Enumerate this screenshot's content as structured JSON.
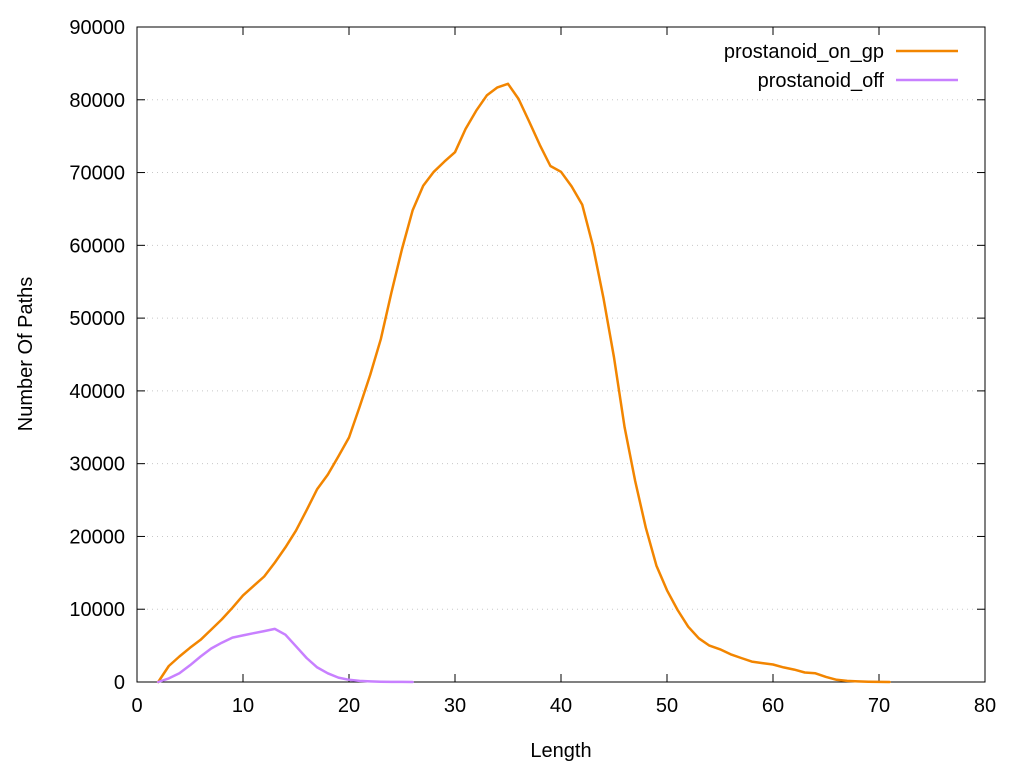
{
  "chart_data": {
    "type": "line",
    "title": "",
    "xlabel": "Length",
    "ylabel": "Number Of Paths",
    "xlim": [
      0,
      80
    ],
    "ylim": [
      0,
      90000
    ],
    "xticks": [
      0,
      10,
      20,
      30,
      40,
      50,
      60,
      70,
      80
    ],
    "yticks": [
      0,
      10000,
      20000,
      30000,
      40000,
      50000,
      60000,
      70000,
      80000,
      90000
    ],
    "grid": "horizontal-dotted",
    "legend_position": "top-right",
    "series": [
      {
        "name": "prostanoid_on_gp",
        "color": "#f28500",
        "x": [
          2,
          3,
          4,
          5,
          6,
          7,
          8,
          9,
          10,
          11,
          12,
          13,
          14,
          15,
          16,
          17,
          18,
          19,
          20,
          21,
          22,
          23,
          24,
          25,
          26,
          27,
          28,
          29,
          30,
          31,
          32,
          33,
          34,
          35,
          36,
          37,
          38,
          39,
          40,
          41,
          42,
          43,
          44,
          45,
          46,
          47,
          48,
          49,
          50,
          51,
          52,
          53,
          54,
          55,
          56,
          57,
          58,
          59,
          60,
          61,
          62,
          63,
          64,
          65,
          66,
          67,
          68,
          69,
          70,
          71
        ],
        "y": [
          0,
          2200,
          3500,
          4700,
          5800,
          7200,
          8600,
          10200,
          11900,
          13200,
          14500,
          16400,
          18500,
          20800,
          23600,
          26500,
          28500,
          31000,
          33600,
          37800,
          42200,
          47100,
          53500,
          59500,
          64800,
          68200,
          70100,
          71500,
          72800,
          76000,
          78500,
          80600,
          81700,
          82200,
          80100,
          77000,
          73800,
          70900,
          70100,
          68100,
          65600,
          60000,
          52800,
          44600,
          35000,
          27600,
          21200,
          16000,
          12600,
          9900,
          7600,
          6000,
          5000,
          4500,
          3800,
          3300,
          2800,
          2600,
          2400,
          2000,
          1700,
          1300,
          1200,
          700,
          300,
          150,
          80,
          40,
          20,
          0
        ]
      },
      {
        "name": "prostanoid_off",
        "color": "#c880ff",
        "x": [
          2,
          3,
          4,
          5,
          6,
          7,
          8,
          9,
          10,
          11,
          12,
          13,
          14,
          15,
          16,
          17,
          18,
          19,
          20,
          21,
          22,
          23,
          24,
          25,
          26
        ],
        "y": [
          0,
          500,
          1200,
          2300,
          3500,
          4600,
          5400,
          6100,
          6400,
          6700,
          7000,
          7300,
          6500,
          4900,
          3300,
          2000,
          1200,
          600,
          300,
          150,
          80,
          40,
          20,
          10,
          0
        ]
      }
    ]
  }
}
